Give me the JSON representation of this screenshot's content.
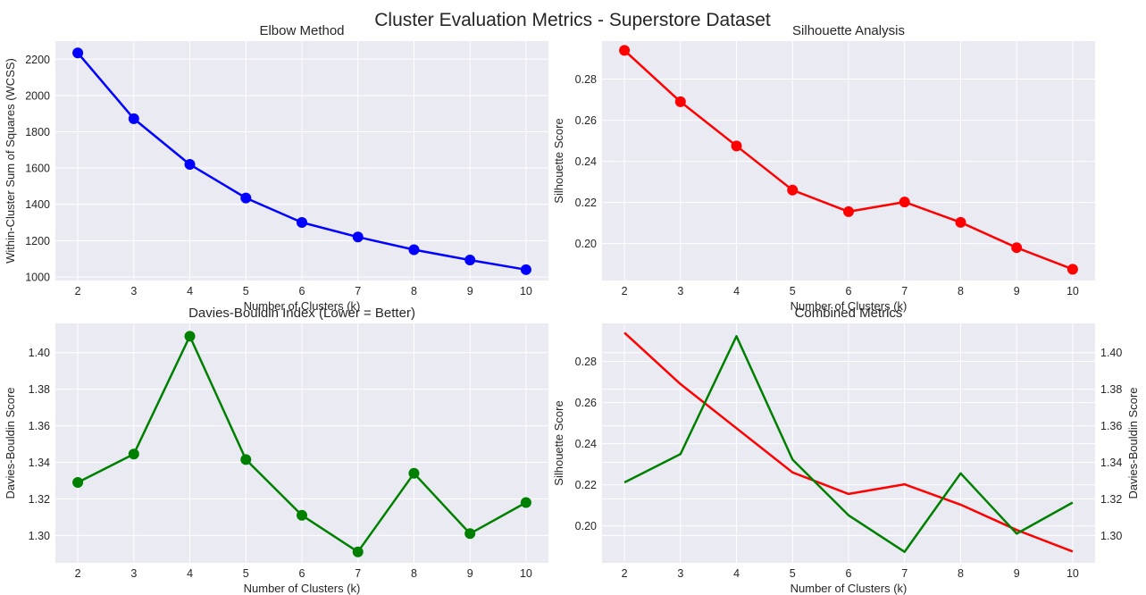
{
  "figure": {
    "title": "Cluster Evaluation Metrics - Superstore Dataset",
    "background": "#ffffff",
    "axes_background": "#eaeaf2",
    "grid_color": "#ffffff"
  },
  "chart_data": [
    {
      "type": "line",
      "title": "Elbow Method",
      "xlabel": "Number of Clusters (k)",
      "ylabel": "Within-Cluster Sum of Squares (WCSS)",
      "x": [
        2,
        3,
        4,
        5,
        6,
        7,
        8,
        9,
        10
      ],
      "x_ticks": [
        2,
        3,
        4,
        5,
        6,
        7,
        8,
        9,
        10
      ],
      "xlim": [
        1.6,
        10.4
      ],
      "ylim": [
        980,
        2300
      ],
      "y_ticks": [
        1000,
        1200,
        1400,
        1600,
        1800,
        2000,
        2200
      ],
      "grid": true,
      "series": [
        {
          "values": [
            2235,
            1872,
            1620,
            1435,
            1300,
            1220,
            1150,
            1093,
            1040
          ],
          "color": "#0000ff",
          "marker": "circle"
        }
      ]
    },
    {
      "type": "line",
      "title": "Silhouette Analysis",
      "xlabel": "Number of Clusters (k)",
      "ylabel": "Silhouette Score",
      "x": [
        2,
        3,
        4,
        5,
        6,
        7,
        8,
        9,
        10
      ],
      "x_ticks": [
        2,
        3,
        4,
        5,
        6,
        7,
        8,
        9,
        10
      ],
      "xlim": [
        1.6,
        10.4
      ],
      "ylim": [
        0.182,
        0.2985
      ],
      "y_ticks": [
        "0.20",
        "0.22",
        "0.24",
        "0.26",
        "0.28"
      ],
      "grid": true,
      "series": [
        {
          "values": [
            0.294,
            0.269,
            0.2475,
            0.226,
            0.2155,
            0.2202,
            0.2103,
            0.198,
            0.1875
          ],
          "color": "#ff0000",
          "marker": "circle"
        }
      ]
    },
    {
      "type": "line",
      "title": "Davies-Bouldin Index (Lower = Better)",
      "xlabel": "Number of Clusters (k)",
      "ylabel": "Davies-Bouldin Score",
      "x": [
        2,
        3,
        4,
        5,
        6,
        7,
        8,
        9,
        10
      ],
      "x_ticks": [
        2,
        3,
        4,
        5,
        6,
        7,
        8,
        9,
        10
      ],
      "xlim": [
        1.6,
        10.4
      ],
      "ylim": [
        1.285,
        1.416
      ],
      "y_ticks": [
        "1.30",
        "1.32",
        "1.34",
        "1.36",
        "1.38",
        "1.40"
      ],
      "grid": true,
      "series": [
        {
          "values": [
            1.329,
            1.3445,
            1.409,
            1.3415,
            1.311,
            1.291,
            1.334,
            1.301,
            1.318
          ],
          "color": "#008000",
          "marker": "circle"
        }
      ]
    },
    {
      "type": "line",
      "title": "Combined Metrics",
      "xlabel": "Number of Clusters (k)",
      "ylabel": "Silhouette Score",
      "ylabel_right": "Davies-Bouldin Score",
      "x": [
        2,
        3,
        4,
        5,
        6,
        7,
        8,
        9,
        10
      ],
      "x_ticks": [
        2,
        3,
        4,
        5,
        6,
        7,
        8,
        9,
        10
      ],
      "xlim": [
        1.6,
        10.4
      ],
      "ylim": [
        0.182,
        0.2985
      ],
      "y_ticks": [
        "0.20",
        "0.22",
        "0.24",
        "0.26",
        "0.28"
      ],
      "ylim_right": [
        1.285,
        1.416
      ],
      "y_ticks_right": [
        "1.30",
        "1.32",
        "1.34",
        "1.36",
        "1.38",
        "1.40"
      ],
      "grid": true,
      "series": [
        {
          "values": [
            0.294,
            0.269,
            0.2475,
            0.226,
            0.2155,
            0.2202,
            0.2103,
            0.198,
            0.1875
          ],
          "color": "#ff0000",
          "axis": "left"
        },
        {
          "values": [
            1.329,
            1.3445,
            1.409,
            1.3415,
            1.311,
            1.291,
            1.334,
            1.301,
            1.318
          ],
          "color": "#008000",
          "axis": "right"
        }
      ]
    }
  ]
}
